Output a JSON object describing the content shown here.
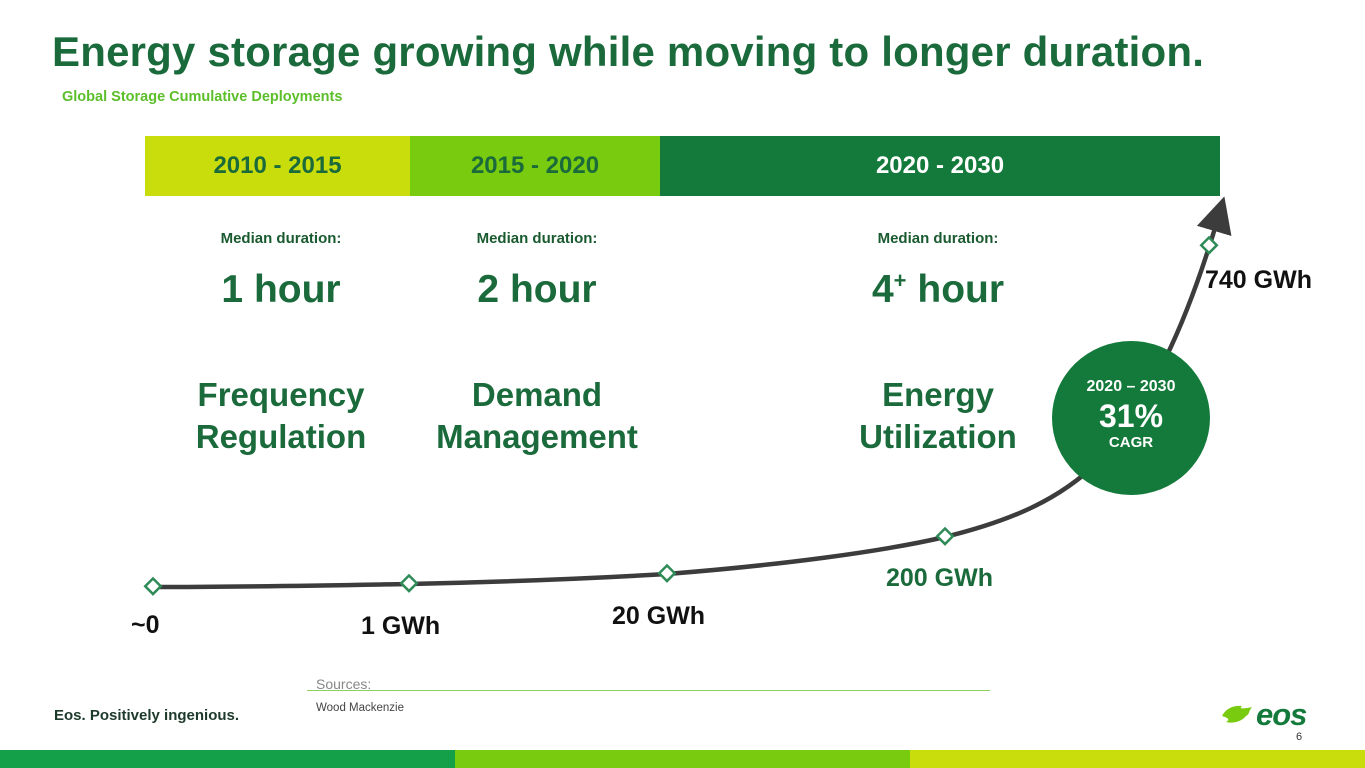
{
  "title": "Energy storage growing while moving to longer duration.",
  "subtitle": "Global Storage Cumulative Deployments",
  "periods": [
    {
      "label": "2010 - 2015",
      "median_label": "Median duration:",
      "duration_num": "1",
      "duration_sup": "",
      "duration_unit": " hour",
      "use_line1": "Frequency",
      "use_line2": "Regulation"
    },
    {
      "label": "2015 - 2020",
      "median_label": "Median duration:",
      "duration_num": "2",
      "duration_sup": "",
      "duration_unit": " hour",
      "use_line1": "Demand",
      "use_line2": "Management"
    },
    {
      "label": "2020 - 2030",
      "median_label": "Median duration:",
      "duration_num": "4",
      "duration_sup": "+",
      "duration_unit": " hour",
      "use_line1": "Energy",
      "use_line2": "Utilization"
    }
  ],
  "curve_points": [
    {
      "label": "~0"
    },
    {
      "label": "1 GWh"
    },
    {
      "label": "20 GWh"
    },
    {
      "label": "200 GWh"
    },
    {
      "label": "740 GWh"
    }
  ],
  "cagr": {
    "period": "2020 – 2030",
    "value": "31%",
    "unit": "CAGR"
  },
  "sources": {
    "label": "Sources:",
    "text": "Wood Mackenzie"
  },
  "tagline": "Eos. Positively ingenious.",
  "logo_text": "eos",
  "page_number": "6",
  "colors": {
    "dark_green": "#147a3b",
    "title_green": "#1a6a3b",
    "lime": "#cadd0c",
    "bright_green": "#78cb0e",
    "footer_green": "#13a049"
  }
}
